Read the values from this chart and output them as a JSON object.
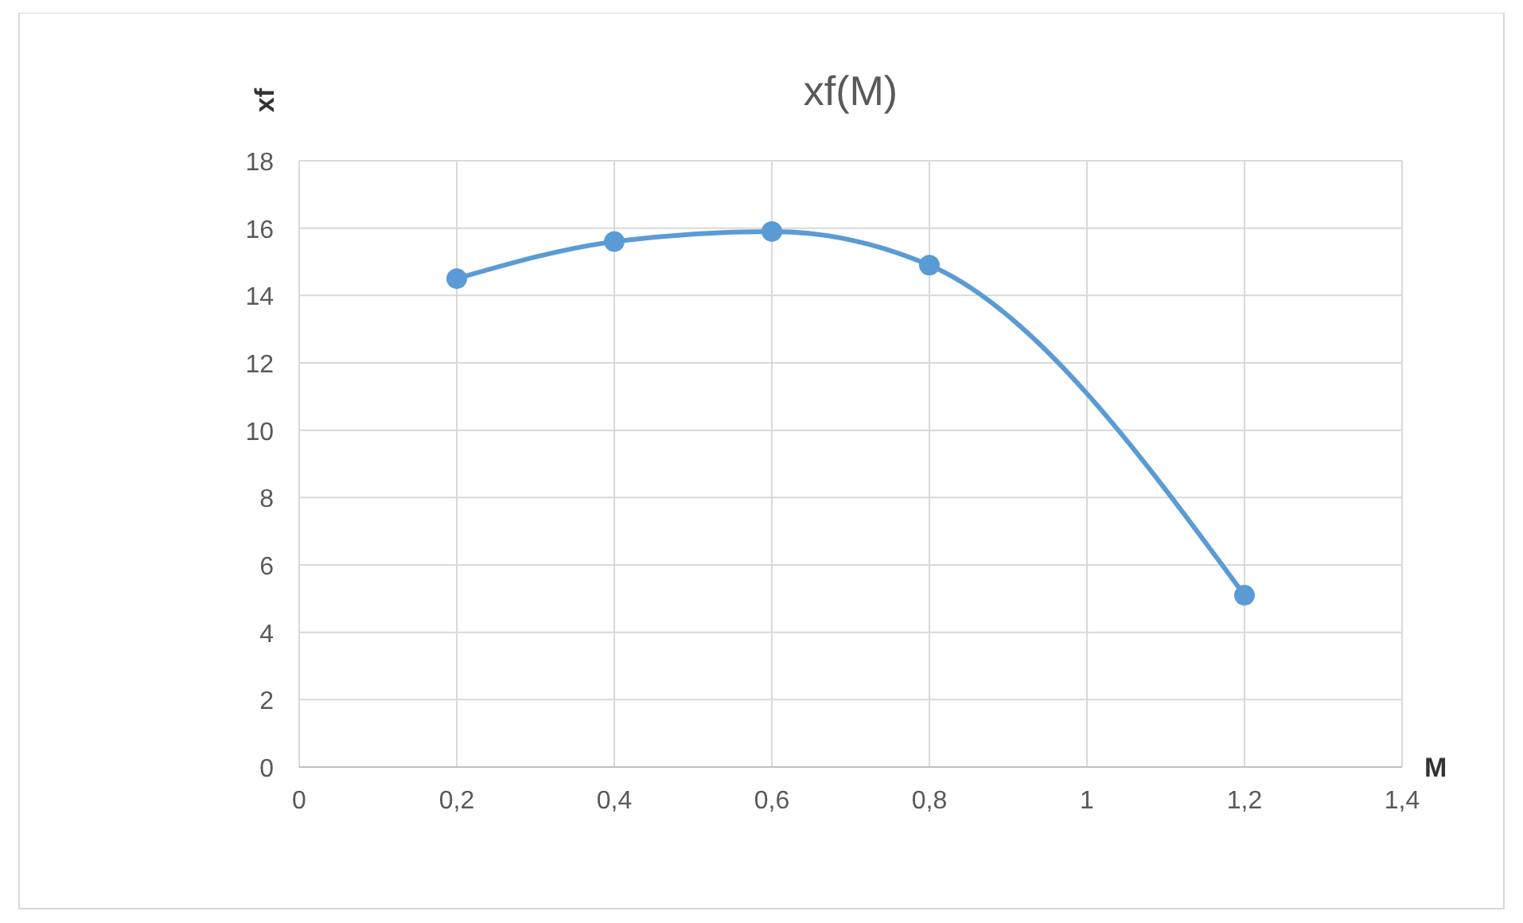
{
  "chart_data": {
    "type": "line",
    "title": "xf(M)",
    "xlabel": "M",
    "ylabel": "xf",
    "x": [
      0.2,
      0.4,
      0.6,
      0.8,
      1.2
    ],
    "series": [
      {
        "color": "#5b9bd5",
        "values": [
          14.5,
          15.6,
          15.9,
          14.9,
          5.1
        ]
      }
    ],
    "xlim": [
      0,
      1.4
    ],
    "xticks": [
      0,
      {
        "value": 0.2,
        "label": "0,2"
      },
      {
        "value": 0.4,
        "label": "0,4"
      },
      {
        "value": 0.6,
        "label": "0,6"
      },
      {
        "value": 0.8,
        "label": "0,8"
      },
      1,
      {
        "value": 1.2,
        "label": "1,2"
      },
      {
        "value": 1.4,
        "label": "1,4"
      }
    ],
    "ylim": [
      0,
      18
    ],
    "yticks": [
      0,
      2,
      4,
      6,
      8,
      10,
      12,
      14,
      16,
      18
    ],
    "grid": true,
    "marker": "circle",
    "line_style": "solid"
  }
}
